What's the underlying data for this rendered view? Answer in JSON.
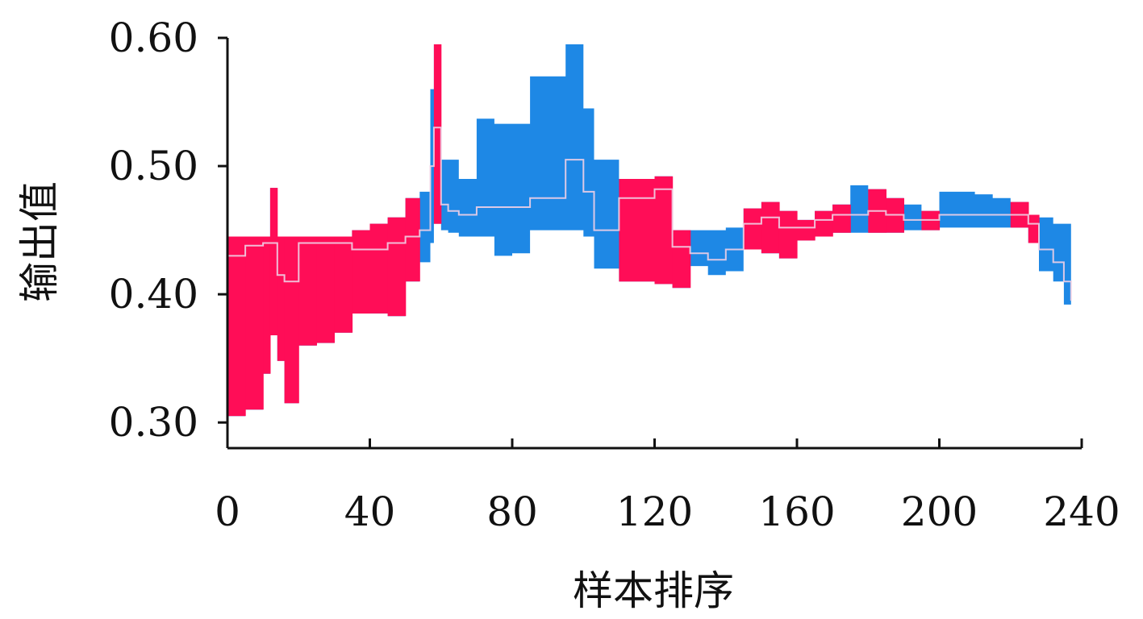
{
  "chart_data": {
    "type": "area",
    "title": "",
    "xlabel": "样本排序",
    "ylabel": "输出值",
    "xlim": [
      0,
      240
    ],
    "ylim": [
      0.28,
      0.6
    ],
    "xticks": [
      0,
      40,
      80,
      120,
      160,
      200,
      240
    ],
    "xtick_labels": [
      "0",
      "40",
      "80",
      "120",
      "160",
      "200",
      "240"
    ],
    "yticks": [
      0.3,
      0.4,
      0.5,
      0.6
    ],
    "ytick_labels": [
      "0.30",
      "0.40",
      "0.50",
      "0.60"
    ],
    "grid": false,
    "legend": "none",
    "colors": {
      "negative": "#1e88e5",
      "positive": "#ff0d57",
      "line": "#f0d0e6",
      "axis": "#111111"
    },
    "x": [
      0,
      5,
      10,
      12,
      14,
      16,
      20,
      25,
      30,
      35,
      40,
      45,
      50,
      54,
      57,
      58,
      60,
      62,
      65,
      70,
      75,
      80,
      85,
      90,
      95,
      100,
      103,
      110,
      120,
      125,
      130,
      135,
      140,
      145,
      150,
      155,
      160,
      165,
      170,
      175,
      180,
      185,
      190,
      195,
      200,
      205,
      210,
      215,
      220,
      225,
      228,
      232,
      235,
      237
    ],
    "series": [
      {
        "role": "upper",
        "values": [
          0.445,
          0.445,
          0.445,
          0.483,
          0.445,
          0.445,
          0.445,
          0.445,
          0.445,
          0.45,
          0.455,
          0.46,
          0.475,
          0.48,
          0.56,
          0.595,
          0.505,
          0.505,
          0.49,
          0.537,
          0.533,
          0.533,
          0.57,
          0.57,
          0.595,
          0.545,
          0.505,
          0.49,
          0.492,
          0.45,
          0.45,
          0.45,
          0.452,
          0.467,
          0.472,
          0.465,
          0.458,
          0.465,
          0.47,
          0.485,
          0.482,
          0.475,
          0.47,
          0.465,
          0.48,
          0.48,
          0.478,
          0.475,
          0.472,
          0.462,
          0.46,
          0.455,
          0.455,
          0.455
        ]
      },
      {
        "role": "base",
        "values": [
          0.43,
          0.438,
          0.44,
          0.44,
          0.415,
          0.41,
          0.44,
          0.44,
          0.44,
          0.435,
          0.435,
          0.44,
          0.445,
          0.45,
          0.5,
          0.53,
          0.47,
          0.465,
          0.462,
          0.468,
          0.468,
          0.468,
          0.475,
          0.475,
          0.505,
          0.48,
          0.45,
          0.475,
          0.482,
          0.437,
          0.432,
          0.427,
          0.435,
          0.455,
          0.46,
          0.452,
          0.452,
          0.458,
          0.462,
          0.462,
          0.465,
          0.462,
          0.458,
          0.458,
          0.462,
          0.462,
          0.462,
          0.462,
          0.462,
          0.455,
          0.435,
          0.425,
          0.41,
          0.395
        ]
      },
      {
        "role": "lower",
        "values": [
          0.305,
          0.31,
          0.338,
          0.368,
          0.348,
          0.315,
          0.36,
          0.362,
          0.37,
          0.385,
          0.385,
          0.383,
          0.41,
          0.425,
          0.44,
          0.455,
          0.45,
          0.448,
          0.445,
          0.445,
          0.43,
          0.432,
          0.45,
          0.45,
          0.45,
          0.445,
          0.42,
          0.41,
          0.408,
          0.405,
          0.422,
          0.415,
          0.418,
          0.435,
          0.432,
          0.428,
          0.442,
          0.445,
          0.448,
          0.448,
          0.448,
          0.448,
          0.45,
          0.45,
          0.452,
          0.452,
          0.452,
          0.452,
          0.452,
          0.44,
          0.418,
          0.41,
          0.392,
          0.39
        ]
      }
    ]
  }
}
